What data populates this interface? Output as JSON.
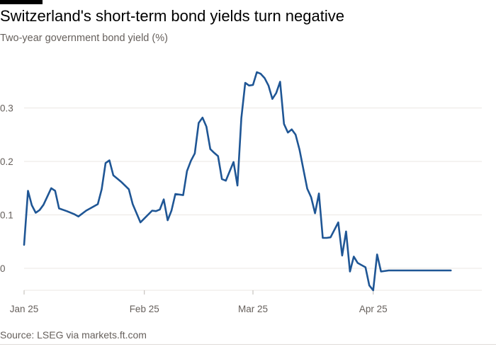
{
  "header": {
    "title": "Switzerland's short-term bond yields turn negative",
    "subtitle": "Two-year government bond yield (%)"
  },
  "footer": {
    "source": "Source: LSEG via markets.ft.com"
  },
  "colors": {
    "line": "#1f5695",
    "grid": "#ebe7e3",
    "text": "#66605c",
    "title": "#000000"
  },
  "chart_data": {
    "type": "line",
    "title": "Switzerland's short-term bond yields turn negative",
    "subtitle": "Two-year government bond yield (%)",
    "xlabel": "",
    "ylabel": "",
    "grid": true,
    "ylim": [
      -0.04,
      0.4
    ],
    "xlim": [
      "2025-01-01",
      "2025-04-29"
    ],
    "y_ticks": [
      {
        "value": 0.0,
        "label": "0"
      },
      {
        "value": 0.1,
        "label": "0.1"
      },
      {
        "value": 0.2,
        "label": "0.2"
      },
      {
        "value": 0.3,
        "label": "0.3"
      }
    ],
    "x_ticks": [
      {
        "date": "2025-01-01",
        "label": "Jan 25"
      },
      {
        "date": "2025-02-01",
        "label": "Feb 25"
      },
      {
        "date": "2025-03-01",
        "label": "Mar 25"
      },
      {
        "date": "2025-04-01",
        "label": "Apr 25"
      }
    ],
    "series": [
      {
        "name": "Two-year government bond yield",
        "x": [
          "2025-01-01",
          "2025-01-02",
          "2025-01-03",
          "2025-01-04",
          "2025-01-05",
          "2025-01-06",
          "2025-01-08",
          "2025-01-09",
          "2025-01-10",
          "2025-01-12",
          "2025-01-14",
          "2025-01-15",
          "2025-01-17",
          "2025-01-20",
          "2025-01-21",
          "2025-01-22",
          "2025-01-23",
          "2025-01-24",
          "2025-01-26",
          "2025-01-28",
          "2025-01-29",
          "2025-01-31",
          "2025-02-03",
          "2025-02-04",
          "2025-02-05",
          "2025-02-06",
          "2025-02-07",
          "2025-02-08",
          "2025-02-09",
          "2025-02-11",
          "2025-02-12",
          "2025-02-13",
          "2025-02-14",
          "2025-02-15",
          "2025-02-16",
          "2025-02-17",
          "2025-02-18",
          "2025-02-19",
          "2025-02-20",
          "2025-02-21",
          "2025-02-22",
          "2025-02-24",
          "2025-02-25",
          "2025-02-26",
          "2025-02-27",
          "2025-02-28",
          "2025-03-01",
          "2025-03-02",
          "2025-03-03",
          "2025-03-04",
          "2025-03-05",
          "2025-03-06",
          "2025-03-07",
          "2025-03-08",
          "2025-03-09",
          "2025-03-10",
          "2025-03-11",
          "2025-03-12",
          "2025-03-13",
          "2025-03-14",
          "2025-03-15",
          "2025-03-16",
          "2025-03-17",
          "2025-03-18",
          "2025-03-19",
          "2025-03-20",
          "2025-03-21",
          "2025-03-23",
          "2025-03-24",
          "2025-03-25",
          "2025-03-26",
          "2025-03-27",
          "2025-03-28",
          "2025-03-30",
          "2025-03-31",
          "2025-04-01",
          "2025-04-02",
          "2025-04-03",
          "2025-04-05",
          "2025-04-06",
          "2025-04-07",
          "2025-04-08",
          "2025-04-09",
          "2025-04-10",
          "2025-04-11",
          "2025-04-12",
          "2025-04-14",
          "2025-04-15",
          "2025-04-16",
          "2025-04-17",
          "2025-04-18",
          "2025-04-19",
          "2025-04-20",
          "2025-04-21"
        ],
        "values": [
          0.044,
          0.145,
          0.118,
          0.104,
          0.109,
          0.119,
          0.15,
          0.145,
          0.112,
          0.107,
          0.101,
          0.097,
          0.108,
          0.12,
          0.148,
          0.197,
          0.202,
          0.174,
          0.162,
          0.148,
          0.12,
          0.086,
          0.108,
          0.107,
          0.11,
          0.129,
          0.09,
          0.108,
          0.139,
          0.137,
          0.182,
          0.201,
          0.215,
          0.272,
          0.282,
          0.265,
          0.223,
          0.216,
          0.21,
          0.167,
          0.164,
          0.199,
          0.155,
          0.281,
          0.347,
          0.342,
          0.343,
          0.367,
          0.364,
          0.356,
          0.342,
          0.317,
          0.328,
          0.349,
          0.27,
          0.254,
          0.26,
          0.25,
          0.222,
          0.185,
          0.149,
          0.133,
          0.103,
          0.14,
          0.057,
          0.057,
          0.058,
          0.086,
          0.024,
          0.069,
          -0.006,
          0.022,
          0.01,
          0.002,
          -0.032,
          -0.041,
          0.026,
          -0.006,
          -0.004,
          -0.004,
          -0.004,
          -0.004,
          -0.004,
          -0.004,
          -0.004,
          -0.004,
          -0.004,
          -0.004,
          -0.004,
          -0.004,
          -0.004,
          -0.004,
          -0.004,
          -0.004
        ]
      }
    ]
  }
}
